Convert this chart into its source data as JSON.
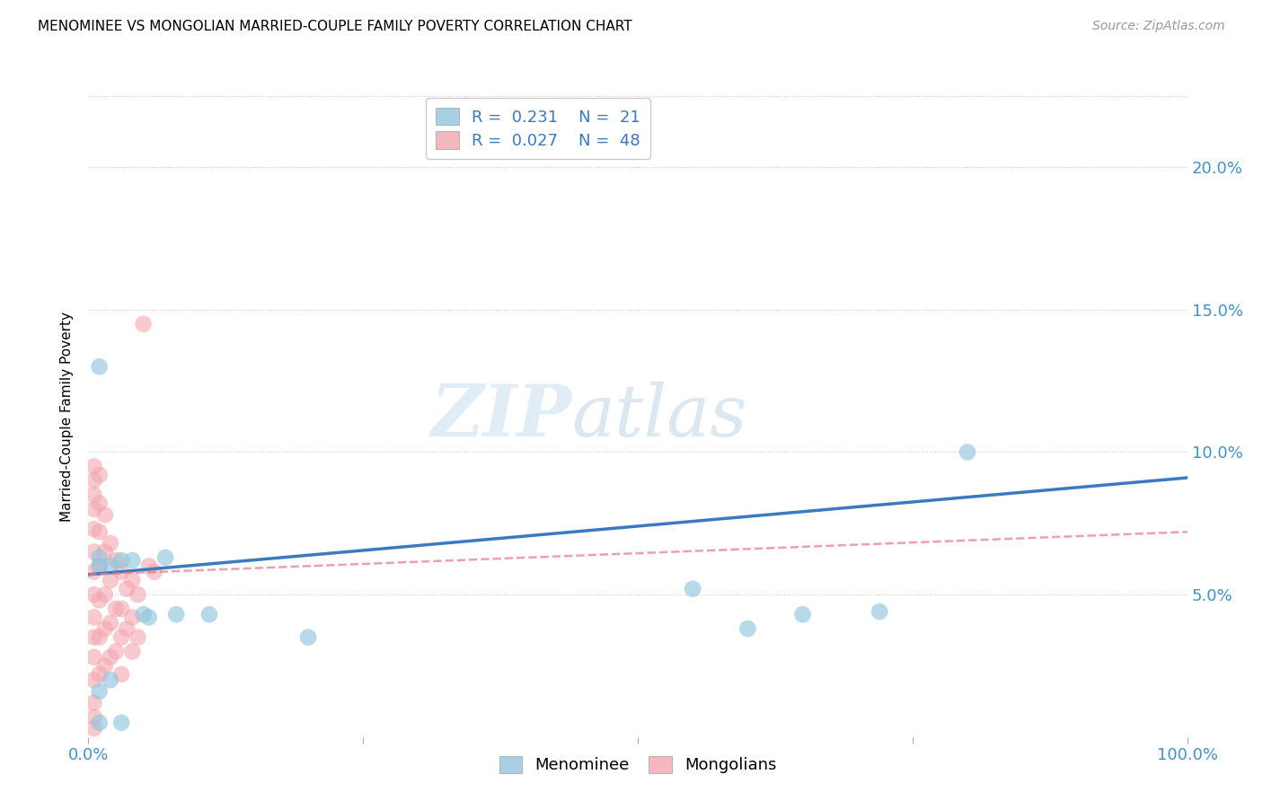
{
  "title": "MENOMINEE VS MONGOLIAN MARRIED-COUPLE FAMILY POVERTY CORRELATION CHART",
  "source": "Source: ZipAtlas.com",
  "ylabel": "Married-Couple Family Poverty",
  "legend_label1": "Menominee",
  "legend_label2": "Mongolians",
  "R1": 0.231,
  "N1": 21,
  "R2": 0.027,
  "N2": 48,
  "watermark_zip": "ZIP",
  "watermark_atlas": "atlas",
  "color_menominee": "#92c5de",
  "color_mongolian": "#f4a6b0",
  "trendline_menominee": "#3a7abf",
  "trendline_mongolian": "#e8808a",
  "ylim": [
    0.0,
    0.225
  ],
  "xlim": [
    0.0,
    1.0
  ],
  "yticks": [
    0.05,
    0.1,
    0.15,
    0.2
  ],
  "ytick_labels": [
    "5.0%",
    "10.0%",
    "15.0%",
    "20.0%"
  ],
  "xticks": [
    0.0,
    0.25,
    0.5,
    0.75,
    1.0
  ],
  "xtick_labels": [
    "0.0%",
    "",
    "",
    "",
    "100.0%"
  ],
  "menominee_x": [
    0.01,
    0.01,
    0.01,
    0.02,
    0.03,
    0.04,
    0.05,
    0.07,
    0.08,
    0.11,
    0.2,
    0.55,
    0.6,
    0.65,
    0.72,
    0.8,
    0.01,
    0.02,
    0.03,
    0.055,
    0.01
  ],
  "menominee_y": [
    0.13,
    0.063,
    0.06,
    0.06,
    0.062,
    0.062,
    0.043,
    0.063,
    0.043,
    0.043,
    0.035,
    0.052,
    0.038,
    0.043,
    0.044,
    0.1,
    0.005,
    0.02,
    0.005,
    0.042,
    0.016
  ],
  "mongolian_x": [
    0.005,
    0.005,
    0.005,
    0.005,
    0.005,
    0.005,
    0.005,
    0.005,
    0.005,
    0.005,
    0.005,
    0.005,
    0.005,
    0.005,
    0.005,
    0.01,
    0.01,
    0.01,
    0.01,
    0.01,
    0.01,
    0.01,
    0.015,
    0.015,
    0.015,
    0.015,
    0.015,
    0.02,
    0.02,
    0.02,
    0.02,
    0.025,
    0.025,
    0.025,
    0.03,
    0.03,
    0.03,
    0.03,
    0.035,
    0.035,
    0.04,
    0.04,
    0.04,
    0.045,
    0.045,
    0.05,
    0.055,
    0.06
  ],
  "mongolian_y": [
    0.095,
    0.09,
    0.085,
    0.08,
    0.073,
    0.065,
    0.058,
    0.05,
    0.042,
    0.035,
    0.028,
    0.02,
    0.012,
    0.007,
    0.003,
    0.092,
    0.082,
    0.072,
    0.06,
    0.048,
    0.035,
    0.022,
    0.078,
    0.065,
    0.05,
    0.038,
    0.025,
    0.068,
    0.055,
    0.04,
    0.028,
    0.062,
    0.045,
    0.03,
    0.058,
    0.045,
    0.035,
    0.022,
    0.052,
    0.038,
    0.055,
    0.042,
    0.03,
    0.05,
    0.035,
    0.145,
    0.06,
    0.058
  ],
  "menominee_trend_x0": 0.0,
  "menominee_trend_y0": 0.057,
  "menominee_trend_x1": 1.0,
  "menominee_trend_y1": 0.091,
  "mongolian_trend_x0": 0.0,
  "mongolian_trend_y0": 0.057,
  "mongolian_trend_x1": 1.0,
  "mongolian_trend_y1": 0.072
}
